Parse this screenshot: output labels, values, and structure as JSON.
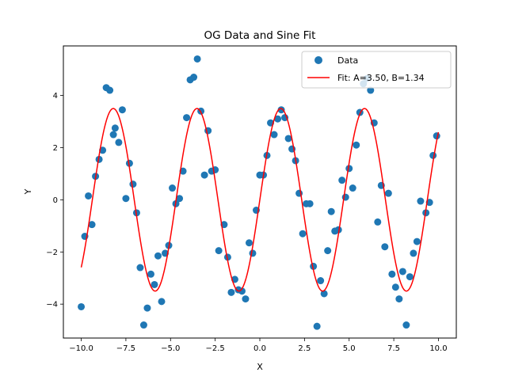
{
  "chart_data": {
    "type": "scatter",
    "title": "OG Data and Sine Fit",
    "xlabel": "X",
    "ylabel": "Y",
    "xlim": [
      -11.0,
      11.0
    ],
    "ylim": [
      -5.3,
      5.9
    ],
    "xticks": [
      -10.0,
      -7.5,
      -5.0,
      -2.5,
      0.0,
      2.5,
      5.0,
      7.5,
      10.0
    ],
    "xtick_labels": [
      "−10.0",
      "−7.5",
      "−5.0",
      "−2.5",
      "0.0",
      "2.5",
      "5.0",
      "7.5",
      "10.0"
    ],
    "yticks": [
      -4,
      -2,
      0,
      2,
      4
    ],
    "ytick_labels": [
      "−4",
      "−2",
      "0",
      "2",
      "4"
    ],
    "grid": false,
    "legend_position": "top-right",
    "series": [
      {
        "name": "Data",
        "kind": "scatter",
        "color": "#1f77b4",
        "points": [
          [
            -10.0,
            -4.1
          ],
          [
            -9.8,
            -1.4
          ],
          [
            -9.6,
            0.15
          ],
          [
            -9.4,
            -0.95
          ],
          [
            -9.2,
            0.9
          ],
          [
            -9.0,
            1.55
          ],
          [
            -8.8,
            1.9
          ],
          [
            -8.6,
            4.3
          ],
          [
            -8.4,
            4.2
          ],
          [
            -8.2,
            2.5
          ],
          [
            -8.1,
            2.75
          ],
          [
            -7.9,
            2.2
          ],
          [
            -7.7,
            3.45
          ],
          [
            -7.5,
            0.05
          ],
          [
            -7.3,
            1.4
          ],
          [
            -7.1,
            0.6
          ],
          [
            -6.9,
            -0.5
          ],
          [
            -6.7,
            -2.6
          ],
          [
            -6.5,
            -4.8
          ],
          [
            -6.3,
            -4.15
          ],
          [
            -6.1,
            -2.85
          ],
          [
            -5.9,
            -3.25
          ],
          [
            -5.7,
            -2.15
          ],
          [
            -5.5,
            -3.9
          ],
          [
            -5.3,
            -2.05
          ],
          [
            -5.1,
            -1.75
          ],
          [
            -4.9,
            0.45
          ],
          [
            -4.7,
            -0.15
          ],
          [
            -4.5,
            0.05
          ],
          [
            -4.3,
            1.1
          ],
          [
            -4.1,
            3.15
          ],
          [
            -3.9,
            4.6
          ],
          [
            -3.7,
            4.7
          ],
          [
            -3.5,
            5.4
          ],
          [
            -3.3,
            3.4
          ],
          [
            -3.1,
            0.95
          ],
          [
            -2.9,
            2.65
          ],
          [
            -2.7,
            1.1
          ],
          [
            -2.5,
            1.15
          ],
          [
            -2.3,
            -1.95
          ],
          [
            -2.0,
            -0.95
          ],
          [
            -1.8,
            -2.2
          ],
          [
            -1.6,
            -3.55
          ],
          [
            -1.4,
            -3.05
          ],
          [
            -1.2,
            -3.45
          ],
          [
            -1.0,
            -3.5
          ],
          [
            -0.8,
            -3.8
          ],
          [
            -0.6,
            -1.65
          ],
          [
            -0.4,
            -2.05
          ],
          [
            -0.2,
            -0.4
          ],
          [
            0.0,
            0.95
          ],
          [
            0.2,
            0.95
          ],
          [
            0.4,
            1.7
          ],
          [
            0.6,
            2.95
          ],
          [
            0.8,
            2.5
          ],
          [
            1.0,
            3.1
          ],
          [
            1.2,
            3.45
          ],
          [
            1.4,
            3.15
          ],
          [
            1.6,
            2.35
          ],
          [
            1.8,
            1.95
          ],
          [
            2.0,
            1.5
          ],
          [
            2.2,
            0.25
          ],
          [
            2.4,
            -1.3
          ],
          [
            2.6,
            -0.15
          ],
          [
            2.8,
            -0.15
          ],
          [
            3.0,
            -2.55
          ],
          [
            3.2,
            -4.85
          ],
          [
            3.4,
            -3.1
          ],
          [
            3.6,
            -3.6
          ],
          [
            3.8,
            -1.95
          ],
          [
            4.0,
            -0.45
          ],
          [
            4.2,
            -1.2
          ],
          [
            4.4,
            -1.15
          ],
          [
            4.6,
            0.75
          ],
          [
            4.8,
            0.1
          ],
          [
            5.0,
            1.2
          ],
          [
            5.2,
            0.45
          ],
          [
            5.4,
            2.1
          ],
          [
            5.6,
            3.35
          ],
          [
            5.8,
            4.45
          ],
          [
            6.0,
            4.65
          ],
          [
            6.2,
            4.2
          ],
          [
            6.4,
            2.95
          ],
          [
            6.6,
            -0.85
          ],
          [
            6.8,
            0.55
          ],
          [
            7.0,
            -1.8
          ],
          [
            7.2,
            0.25
          ],
          [
            7.4,
            -2.85
          ],
          [
            7.6,
            -3.35
          ],
          [
            7.8,
            -3.8
          ],
          [
            8.0,
            -2.75
          ],
          [
            8.2,
            -4.8
          ],
          [
            8.4,
            -2.95
          ],
          [
            8.6,
            -2.05
          ],
          [
            8.8,
            -1.6
          ],
          [
            9.0,
            -0.05
          ],
          [
            9.3,
            -0.5
          ],
          [
            9.5,
            -0.1
          ],
          [
            9.7,
            1.7
          ],
          [
            9.9,
            2.45
          ]
        ]
      },
      {
        "name": "Fit: A=3.50, B=1.34",
        "kind": "line",
        "color": "#ff0000",
        "amplitude": 3.5,
        "frequency": 1.34,
        "x_range": [
          -10.0,
          10.0
        ]
      }
    ]
  }
}
